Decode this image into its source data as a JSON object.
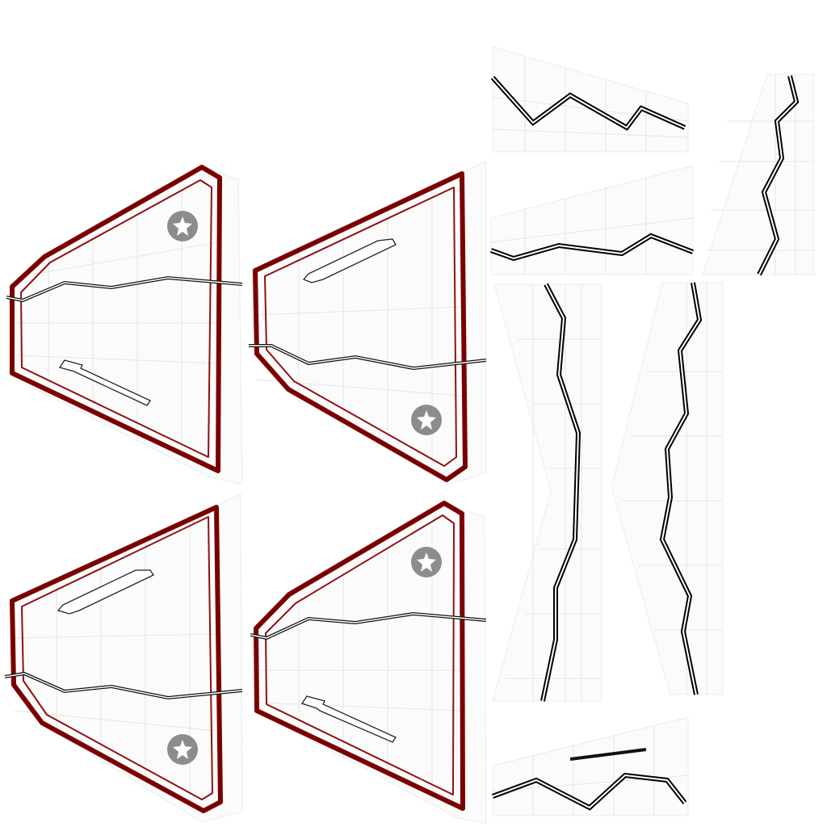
{
  "scene": {
    "description_free": true,
    "accent_color": "#7a0000",
    "trim_color": "#8f1111",
    "path_color": "#000000",
    "badge_color": "#8c8c8c",
    "background_color": "#ffffff"
  },
  "icons": {
    "badge": "star-badge-icon"
  }
}
